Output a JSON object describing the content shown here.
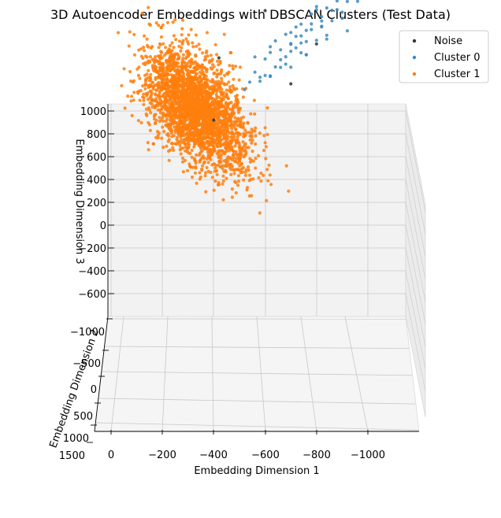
{
  "chart_data": {
    "type": "scatter",
    "projection": "3d",
    "title": "3D Autoencoder Embeddings with DBSCAN Clusters (Test Data)",
    "xlabel": "Embedding Dimension 1",
    "ylabel": "Embedding Dimension 2",
    "zlabel": "Embedding Dimension 3",
    "x_ticks": [
      "0",
      "−200",
      "−400",
      "−600",
      "−800",
      "−1000"
    ],
    "y_ticks": [
      "−1000",
      "−500",
      "0",
      "500",
      "1000",
      "1500"
    ],
    "z_ticks": [
      "1000",
      "800",
      "600",
      "400",
      "200",
      "0",
      "−200",
      "−400",
      "−600"
    ],
    "legend_position": "top-right",
    "grid": true,
    "series": [
      {
        "name": "Noise",
        "color": "#333333",
        "points": [
          [
            -700,
            650,
            -900
          ],
          [
            -800,
            650,
            -1250
          ],
          [
            -1050,
            -100,
            -1400
          ],
          [
            -1150,
            -250,
            -1500
          ],
          [
            -950,
            -400,
            -1700
          ],
          [
            -1100,
            -600,
            -1500
          ],
          [
            -600,
            -150,
            -1100
          ],
          [
            -420,
            -850,
            -300
          ],
          [
            -400,
            -950,
            300
          ],
          [
            -750,
            -850,
            -1300
          ]
        ]
      },
      {
        "name": "Cluster 0",
        "color": "#3b8bc2",
        "points": [
          [
            -520,
            -780,
            -60
          ],
          [
            -560,
            -840,
            -180
          ],
          [
            -600,
            -760,
            -340
          ],
          [
            -640,
            -830,
            -460
          ],
          [
            -660,
            -880,
            -200
          ],
          [
            -700,
            -800,
            -550
          ],
          [
            -720,
            -760,
            -620
          ],
          [
            -740,
            -850,
            -430
          ],
          [
            -760,
            -900,
            -300
          ],
          [
            -780,
            -820,
            -700
          ],
          [
            -800,
            -780,
            -760
          ],
          [
            -820,
            -870,
            -560
          ],
          [
            -840,
            -930,
            -420
          ],
          [
            -860,
            -800,
            -860
          ],
          [
            -880,
            -760,
            -920
          ],
          [
            -900,
            -850,
            -700
          ],
          [
            -920,
            -880,
            -520
          ],
          [
            -940,
            -820,
            -980
          ],
          [
            -960,
            -770,
            -1040
          ],
          [
            -980,
            -860,
            -820
          ],
          [
            -1000,
            -790,
            -1120
          ],
          [
            -620,
            -900,
            -320
          ],
          [
            -680,
            -940,
            -260
          ],
          [
            -700,
            -920,
            -380
          ],
          [
            -760,
            -960,
            -480
          ],
          [
            -820,
            -960,
            -600
          ],
          [
            -880,
            -920,
            -760
          ],
          [
            -660,
            -760,
            -420
          ],
          [
            -720,
            -720,
            -560
          ],
          [
            -780,
            -700,
            -680
          ],
          [
            -840,
            -700,
            -820
          ],
          [
            -900,
            -720,
            -900
          ],
          [
            -600,
            -860,
            -140
          ],
          [
            -640,
            -960,
            -160
          ],
          [
            -700,
            -990,
            -280
          ],
          [
            -760,
            -1000,
            -360
          ],
          [
            -820,
            -990,
            -500
          ],
          [
            -880,
            -1000,
            -640
          ],
          [
            -940,
            -960,
            -860
          ],
          [
            -1000,
            -940,
            -1000
          ],
          [
            -560,
            -720,
            -380
          ],
          [
            -620,
            -700,
            -480
          ],
          [
            -680,
            -680,
            -600
          ],
          [
            -740,
            -660,
            -700
          ],
          [
            -800,
            -650,
            -860
          ],
          [
            -860,
            -640,
            -980
          ],
          [
            -920,
            -660,
            -1100
          ],
          [
            -980,
            -720,
            -1180
          ],
          [
            -1040,
            -780,
            -1240
          ],
          [
            -540,
            -900,
            -60
          ],
          [
            -580,
            -950,
            -40
          ],
          [
            -620,
            -1000,
            -60
          ],
          [
            -680,
            -1040,
            -140
          ],
          [
            -740,
            -1040,
            -240
          ],
          [
            -800,
            -1020,
            -360
          ],
          [
            -860,
            -1040,
            -520
          ],
          [
            -920,
            -1020,
            -700
          ],
          [
            -980,
            -1000,
            -880
          ],
          [
            -1060,
            -880,
            -1180
          ],
          [
            -660,
            -820,
            -300
          ],
          [
            -700,
            -860,
            -420
          ],
          [
            -740,
            -800,
            -520
          ],
          [
            -780,
            -900,
            -520
          ],
          [
            -820,
            -820,
            -640
          ],
          [
            -860,
            -880,
            -700
          ],
          [
            -900,
            -780,
            -880
          ],
          [
            -940,
            -900,
            -780
          ],
          [
            -960,
            -860,
            -920
          ],
          [
            -1000,
            -840,
            -1020
          ],
          [
            -720,
            -900,
            -360
          ],
          [
            -580,
            -1050,
            -20
          ],
          [
            -620,
            -1080,
            -10
          ],
          [
            -700,
            -1100,
            -80
          ],
          [
            -760,
            -1080,
            -200
          ],
          [
            -840,
            -1100,
            -360
          ],
          [
            -900,
            -1080,
            -520
          ],
          [
            -960,
            -1060,
            -680
          ],
          [
            -1020,
            -980,
            -960
          ],
          [
            -1080,
            -900,
            -1220
          ],
          [
            -1100,
            -820,
            -1320
          ]
        ]
      },
      {
        "name": "Cluster 1",
        "color": "#ff7f0e",
        "points": []
      }
    ]
  }
}
